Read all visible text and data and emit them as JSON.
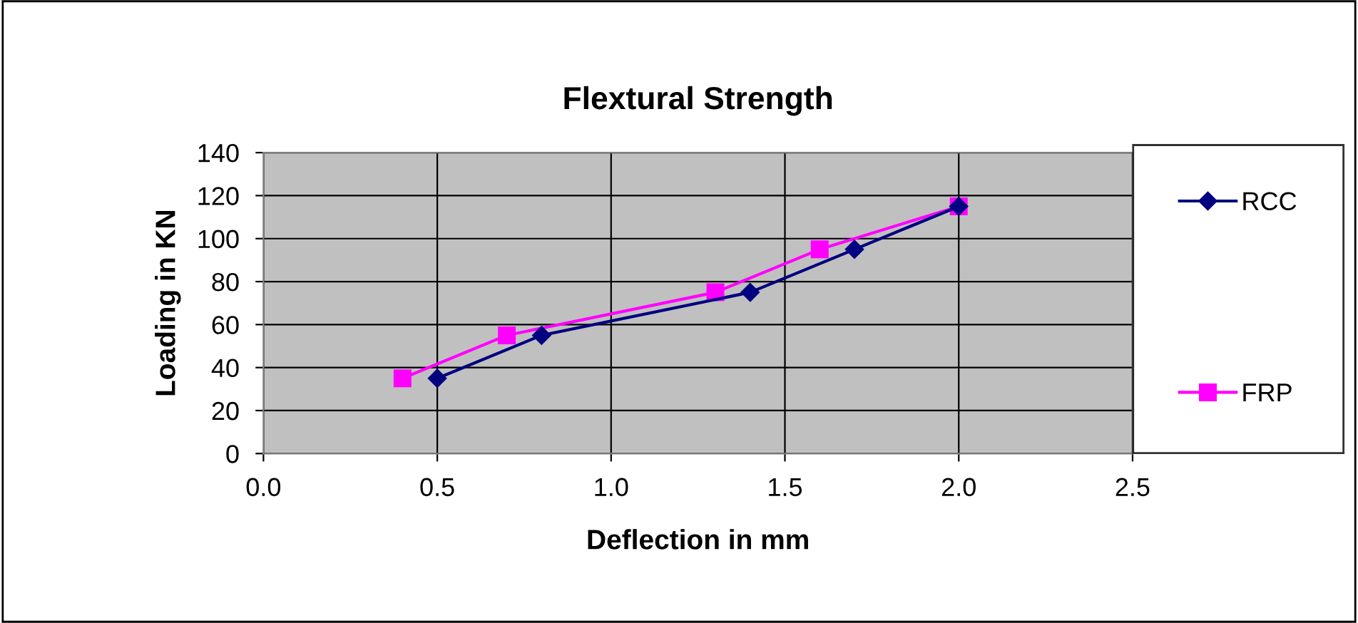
{
  "chart_data": {
    "type": "line",
    "title": "Flextural Strength",
    "xlabel": "Deflection in mm",
    "ylabel": "Loading in KN",
    "series": [
      {
        "name": "RCC",
        "color": "#000080",
        "marker": "diamond",
        "x": [
          0.5,
          0.8,
          1.4,
          1.7,
          2.0
        ],
        "values": [
          35,
          55,
          75,
          95,
          115
        ]
      },
      {
        "name": "FRP",
        "color": "#ff00ff",
        "marker": "square",
        "x": [
          0.4,
          0.7,
          1.3,
          1.6,
          2.0
        ],
        "values": [
          35,
          55,
          75,
          95,
          115
        ]
      }
    ],
    "xlim": [
      0,
      2.5
    ],
    "xticks": [
      {
        "value": 0,
        "label": "0.0"
      },
      0.5,
      {
        "value": 1,
        "label": "1.0"
      },
      1.5,
      {
        "value": 2,
        "label": "2.0"
      },
      2.5
    ],
    "ylim": [
      0,
      140
    ],
    "yticks": [
      0,
      20,
      40,
      60,
      80,
      100,
      120,
      140
    ],
    "grid": true,
    "legend": "right",
    "line_style": "solid"
  }
}
